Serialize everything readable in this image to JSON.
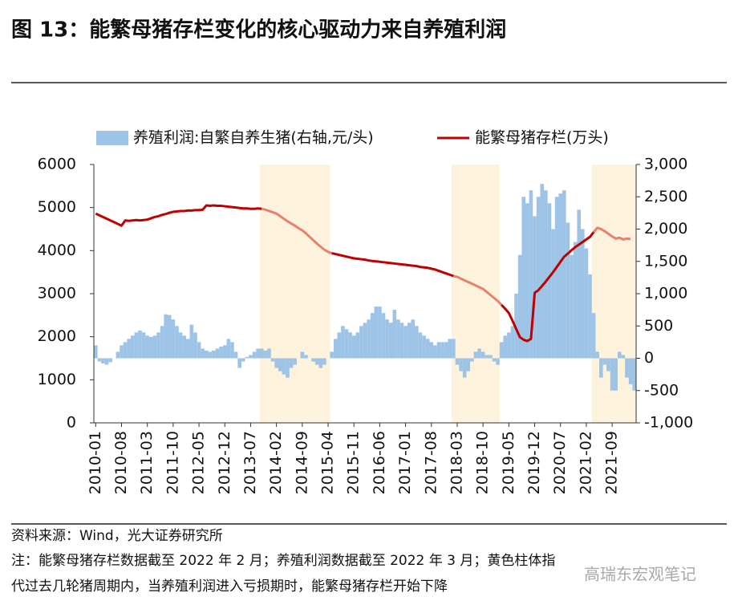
{
  "header": {
    "title": "图 13：能繁母猪存栏变化的核心驱动力来自养殖利润"
  },
  "chart_data": {
    "type": "bar-line",
    "categories": [
      "2010-01",
      null,
      null,
      null,
      null,
      null,
      null,
      "2010-08",
      null,
      null,
      null,
      null,
      null,
      null,
      "2011-03",
      null,
      null,
      null,
      null,
      null,
      null,
      "2011-10",
      null,
      null,
      null,
      null,
      null,
      null,
      "2012-05",
      null,
      null,
      null,
      null,
      null,
      null,
      "2012-12",
      null,
      null,
      null,
      null,
      null,
      null,
      "2013-07",
      null,
      null,
      null,
      null,
      null,
      null,
      "2014-02",
      null,
      null,
      null,
      null,
      null,
      null,
      "2014-09",
      null,
      null,
      null,
      null,
      null,
      null,
      "2015-04",
      null,
      null,
      null,
      null,
      null,
      null,
      "2015-11",
      null,
      null,
      null,
      null,
      null,
      null,
      "2016-06",
      null,
      null,
      null,
      null,
      null,
      null,
      "2017-01",
      null,
      null,
      null,
      null,
      null,
      null,
      "2017-08",
      null,
      null,
      null,
      null,
      null,
      null,
      "2018-03",
      null,
      null,
      null,
      null,
      null,
      null,
      "2018-10",
      null,
      null,
      null,
      null,
      null,
      null,
      "2019-05",
      null,
      null,
      null,
      null,
      null,
      null,
      "2019-12",
      null,
      null,
      null,
      null,
      null,
      null,
      "2020-07",
      null,
      null,
      null,
      null,
      null,
      null,
      "2021-02",
      null,
      null,
      null,
      null,
      null,
      null,
      "2021-09",
      null,
      null,
      null,
      null,
      null,
      null
    ],
    "series": [
      {
        "name": "养殖利润:自繁自养生猪(右轴,元/头)",
        "type": "bar",
        "axis": "y2",
        "color": "#9dc3e6",
        "values": [
          200,
          -50,
          -80,
          -100,
          -60,
          0,
          100,
          200,
          250,
          300,
          350,
          400,
          430,
          400,
          350,
          330,
          350,
          400,
          500,
          680,
          670,
          600,
          500,
          400,
          350,
          300,
          520,
          400,
          250,
          150,
          120,
          100,
          120,
          150,
          180,
          200,
          300,
          250,
          100,
          -150,
          -50,
          20,
          50,
          100,
          150,
          150,
          120,
          150,
          -50,
          -150,
          -200,
          -250,
          -300,
          -150,
          -100,
          0,
          100,
          50,
          0,
          -50,
          -100,
          -150,
          -100,
          0,
          100,
          300,
          400,
          500,
          450,
          400,
          350,
          400,
          500,
          550,
          600,
          700,
          800,
          800,
          700,
          600,
          550,
          750,
          600,
          550,
          500,
          550,
          600,
          500,
          400,
          350,
          300,
          250,
          200,
          250,
          250,
          250,
          300,
          300,
          -100,
          -200,
          -300,
          -200,
          -50,
          100,
          150,
          100,
          50,
          50,
          -50,
          -100,
          250,
          350,
          400,
          500,
          1000,
          1600,
          2500,
          2400,
          2600,
          2200,
          2500,
          2700,
          2600,
          2400,
          2000,
          2500,
          2550,
          2600,
          2100,
          1600,
          1800,
          2300,
          2000,
          1700,
          1300,
          700,
          100,
          -300,
          -100,
          -200,
          -500,
          -500,
          100,
          50,
          -300,
          -400,
          -500
        ]
      },
      {
        "name": "能繁母猪存栏(万头)",
        "type": "line",
        "color": "#c00000",
        "shaded_color": "#e8806f",
        "values": [
          4860,
          4820,
          4780,
          4740,
          4700,
          4660,
          4620,
          4580,
          4700,
          4690,
          4700,
          4710,
          4700,
          4710,
          4720,
          4750,
          4780,
          4800,
          4830,
          4850,
          4880,
          4900,
          4910,
          4920,
          4920,
          4930,
          4930,
          4940,
          4940,
          4950,
          5050,
          5040,
          5050,
          5040,
          5040,
          5030,
          5020,
          5010,
          5000,
          4990,
          4980,
          4980,
          4970,
          4970,
          4980,
          4970,
          4950,
          4920,
          4890,
          4860,
          4800,
          4740,
          4680,
          4630,
          4580,
          4520,
          4470,
          4400,
          4320,
          4240,
          4160,
          4090,
          4020,
          3970,
          3940,
          3920,
          3900,
          3880,
          3860,
          3840,
          3820,
          3810,
          3800,
          3790,
          3770,
          3760,
          3750,
          3740,
          3730,
          3720,
          3710,
          3700,
          3690,
          3680,
          3670,
          3660,
          3650,
          3640,
          3620,
          3610,
          3600,
          3580,
          3560,
          3530,
          3500,
          3470,
          3440,
          3410,
          3390,
          3350,
          3310,
          3270,
          3230,
          3190,
          3150,
          3110,
          3040,
          2970,
          2900,
          2830,
          2740,
          2650,
          2550,
          2370,
          2180,
          1990,
          1930,
          1900,
          1950,
          3020,
          3080,
          3180,
          3280,
          3390,
          3500,
          3620,
          3740,
          3860,
          3930,
          4010,
          4080,
          4140,
          4200,
          4260,
          4320,
          4430,
          4530,
          4500,
          4450,
          4390,
          4330,
          4280,
          4300,
          4260,
          4280,
          4270,
          null
        ]
      }
    ],
    "shaded": [
      [
        45,
        63
      ],
      [
        97,
        109
      ],
      [
        135,
        146
      ]
    ],
    "shade_color": "#fdf3dc",
    "ylim": [
      0,
      6000
    ],
    "yticks": [
      0,
      1000,
      2000,
      3000,
      4000,
      5000,
      6000
    ],
    "y2lim": [
      -1000,
      3000
    ],
    "y2ticks": [
      {
        "value": -1000,
        "label": "-1,000"
      },
      -500,
      0,
      500,
      {
        "value": 1000,
        "label": "1,000"
      },
      {
        "value": 1500,
        "label": "1,500"
      },
      {
        "value": 2000,
        "label": "2,000"
      },
      {
        "value": 2500,
        "label": "2,500"
      },
      {
        "value": 3000,
        "label": "3,000"
      }
    ]
  },
  "footer": {
    "source": "资料来源：Wind，光大证券研究所",
    "note": [
      "注：能繁母猪存栏数据截至 2022 年 2 月；养殖利润数据截至 2022 年 3 月；黄色柱体指",
      "代过去几轮猪周期内，当养殖利润进入亏损期时，能繁母猪存栏开始下降"
    ],
    "watermark": "高瑞东宏观笔记"
  }
}
